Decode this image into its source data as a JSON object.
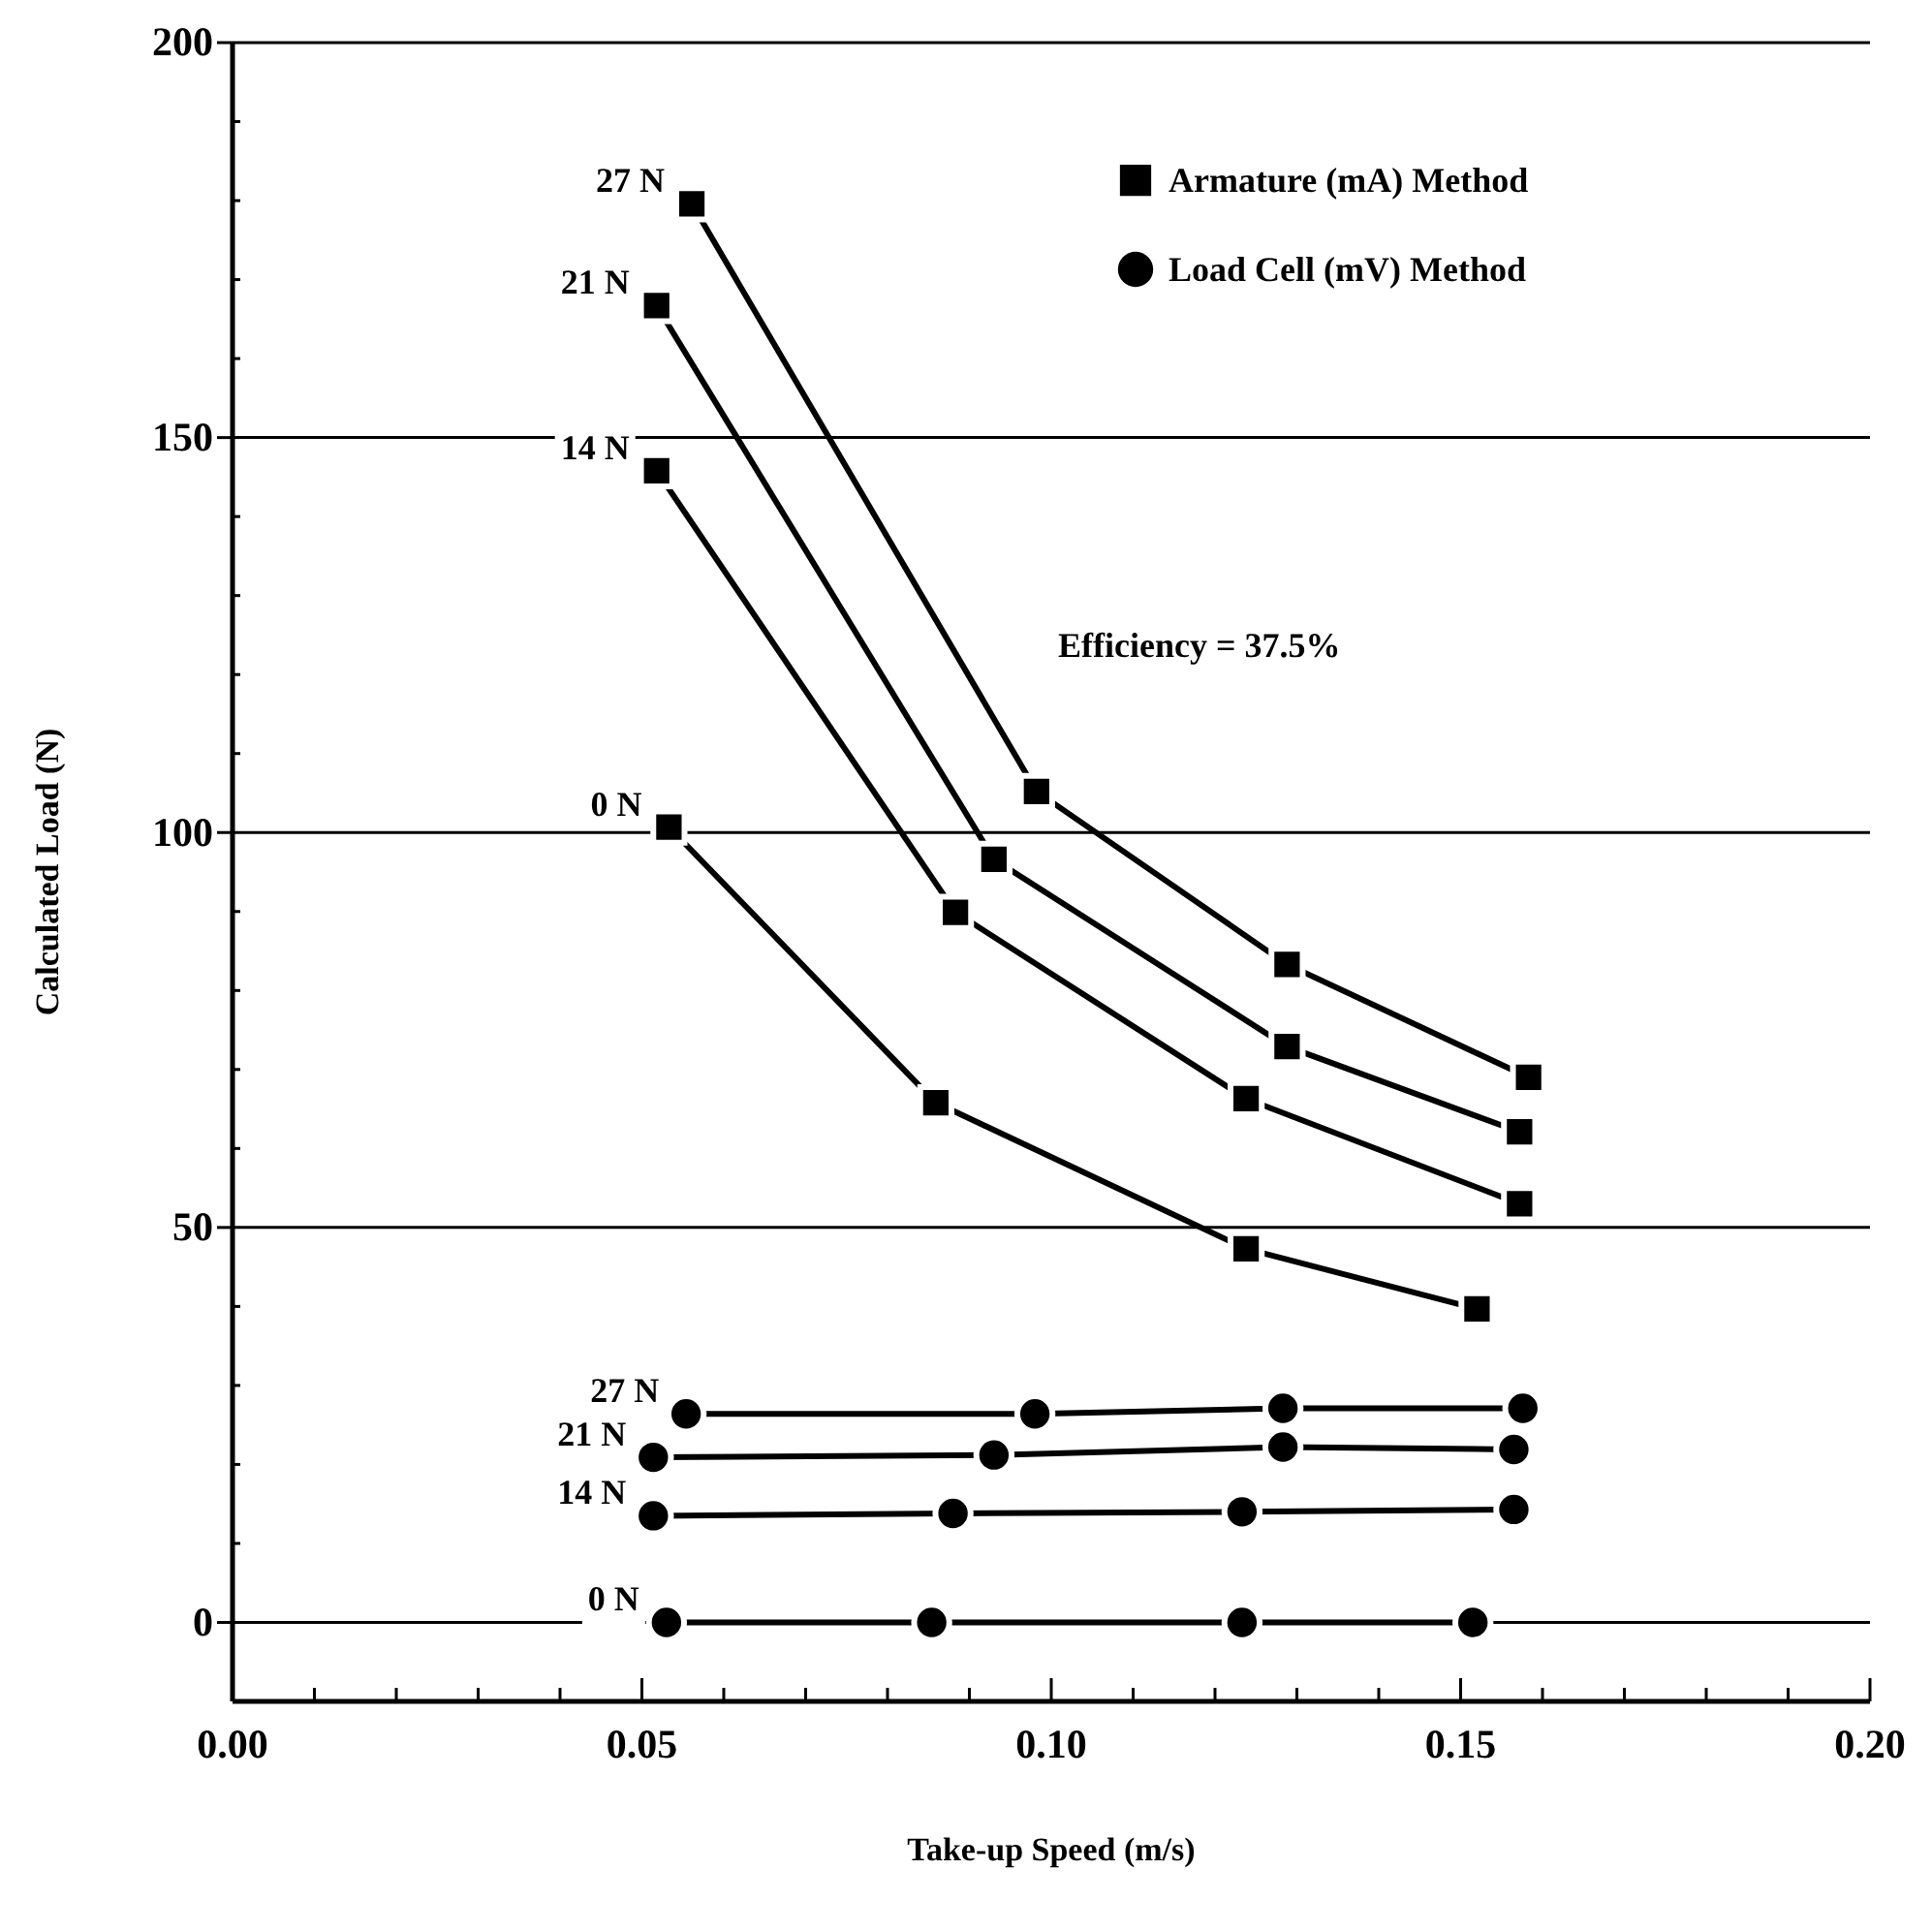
{
  "chart_data": {
    "type": "line",
    "xlabel": "Take-up Speed (m/s)",
    "ylabel": "Calculated Load (N)",
    "xlim": [
      0,
      0.2
    ],
    "ylim": [
      -10,
      200
    ],
    "xticks": [
      {
        "value": 0,
        "label": "0.00"
      },
      {
        "value": 0.01,
        "label": null
      },
      {
        "value": 0.02,
        "label": null
      },
      {
        "value": 0.03,
        "label": null
      },
      {
        "value": 0.04,
        "label": null
      },
      {
        "value": 0.05,
        "label": "0.05"
      },
      {
        "value": 0.06,
        "label": null
      },
      {
        "value": 0.07,
        "label": null
      },
      {
        "value": 0.08,
        "label": null
      },
      {
        "value": 0.09,
        "label": null
      },
      {
        "value": 0.1,
        "label": "0.10"
      },
      {
        "value": 0.11,
        "label": null
      },
      {
        "value": 0.12,
        "label": null
      },
      {
        "value": 0.13,
        "label": null
      },
      {
        "value": 0.14,
        "label": null
      },
      {
        "value": 0.15,
        "label": "0.15"
      },
      {
        "value": 0.16,
        "label": null
      },
      {
        "value": 0.17,
        "label": null
      },
      {
        "value": 0.18,
        "label": null
      },
      {
        "value": 0.19,
        "label": null
      },
      {
        "value": 0.2,
        "label": "0.20"
      }
    ],
    "yticks": [
      0,
      {
        "value": 10,
        "label": null
      },
      {
        "value": 20,
        "label": null
      },
      {
        "value": 30,
        "label": null
      },
      {
        "value": 40,
        "label": null
      },
      50,
      {
        "value": 60,
        "label": null
      },
      {
        "value": 70,
        "label": null
      },
      {
        "value": 80,
        "label": null
      },
      {
        "value": 90,
        "label": null
      },
      100,
      {
        "value": 110,
        "label": null
      },
      {
        "value": 120,
        "label": null
      },
      {
        "value": 130,
        "label": null
      },
      {
        "value": 140,
        "label": null
      },
      150,
      {
        "value": 160,
        "label": null
      },
      {
        "value": 170,
        "label": null
      },
      {
        "value": 180,
        "label": null
      },
      {
        "value": 190,
        "label": null
      },
      200
    ],
    "grid": "y",
    "line_style": "solid",
    "legend": "top right",
    "series": [
      {
        "name": "Armature (mA) Method",
        "color": "#000000",
        "marker": "square",
        "x": [
          0.0561,
          0.0982,
          0.1288,
          0.1583,
          null,
          0.0518,
          0.093,
          0.1288,
          0.1572,
          null,
          0.0518,
          0.0883,
          0.1238,
          0.1572,
          null,
          0.0533,
          0.0859,
          0.1238,
          0.152
        ],
        "values": [
          179.6,
          105.2,
          83.3,
          69.0,
          null,
          166.7,
          96.6,
          72.9,
          62.1,
          null,
          145.8,
          89.9,
          66.3,
          53.0,
          null,
          100.7,
          65.8,
          47.3,
          39.7
        ]
      },
      {
        "name": "Load Cell (mV) Method",
        "color": "#000000",
        "marker": "circle",
        "x": [
          0.0554,
          0.098,
          0.1283,
          0.1576,
          null,
          0.0514,
          0.093,
          0.1283,
          0.1565,
          null,
          0.0514,
          0.088,
          0.1233,
          0.1565,
          null,
          0.053,
          0.0854,
          0.1233,
          0.1515
        ],
        "values": [
          26.4,
          26.4,
          27.1,
          27.1,
          null,
          20.9,
          21.2,
          22.2,
          21.9,
          null,
          13.5,
          13.8,
          14.0,
          14.3,
          null,
          0,
          0,
          0,
          0
        ]
      }
    ],
    "annotations": [
      "Efficiency = 37.5%",
      {
        "text": "27 N",
        "x": 0.0561,
        "y": 179.6
      },
      {
        "text": "21 N",
        "x": 0.0518,
        "y": 166.7
      },
      {
        "text": "14 N",
        "x": 0.0518,
        "y": 145.8
      },
      {
        "text": "0 N",
        "x": 0.0533,
        "y": 100.7
      },
      {
        "text": "27 N",
        "x": 0.0554,
        "y": 26.4
      },
      {
        "text": "21 N",
        "x": 0.0514,
        "y": 20.9
      },
      {
        "text": "14 N",
        "x": 0.0514,
        "y": 13.5
      },
      {
        "text": "0 N",
        "x": 0.053,
        "y": 0
      }
    ]
  }
}
